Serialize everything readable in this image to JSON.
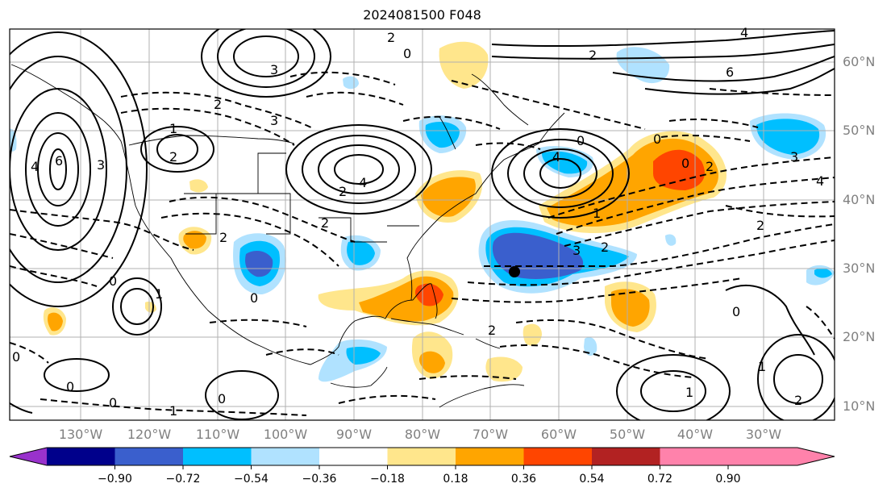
{
  "title": "2024081500 F048",
  "lat_labels": [
    "60°N",
    "50°N",
    "40°N",
    "30°N",
    "20°N",
    "10°N"
  ],
  "lon_labels": [
    "130°W",
    "120°W",
    "110°W",
    "100°W",
    "90°W",
    "80°W",
    "70°W",
    "60°W",
    "50°W",
    "40°W",
    "30°W"
  ],
  "colorbar": {
    "ticks": [
      "−0.90",
      "−0.72",
      "−0.54",
      "−0.36",
      "−0.18",
      "0.18",
      "0.36",
      "0.54",
      "0.72",
      "0.90"
    ],
    "colors": [
      "#9932cc",
      "#00008b",
      "#3a5fcd",
      "#00bfff",
      "#b0e2ff",
      "#ffffff",
      "#ffe68c",
      "#ffa500",
      "#ff4500",
      "#b22222",
      "#ff82ab"
    ]
  },
  "contour_labels": [
    "0",
    "1",
    "2",
    "3",
    "4",
    "6"
  ]
}
